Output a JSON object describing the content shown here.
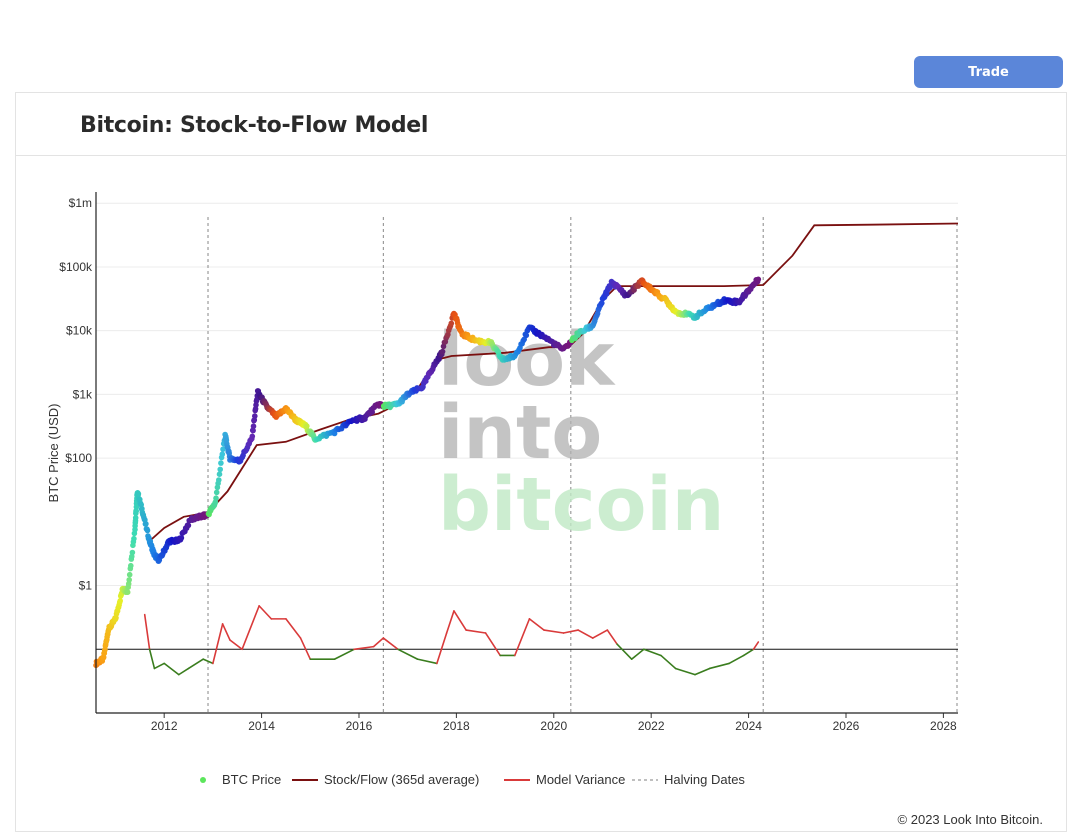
{
  "header": {
    "trade_label": "Trade"
  },
  "card": {
    "title": "Bitcoin: Stock-to-Flow Model"
  },
  "watermark": [
    "look",
    "into",
    "bitcoin"
  ],
  "footer": {
    "copyright": "© 2023 Look Into Bitcoin."
  },
  "colors": {
    "accent": "#5b86d9",
    "stock_flow": "#7a1010",
    "variance_high": "#d93a3a",
    "variance_low": "#3a7d1e",
    "halving": "#888888"
  },
  "chart_data": {
    "type": "line",
    "title": "",
    "ylabel": "BTC Price (USD)",
    "xlabel": "",
    "y_scale": "log",
    "xlim": [
      2010.6,
      2028.3
    ],
    "ylim": [
      0.01,
      1500000
    ],
    "x_ticks": [
      2012,
      2014,
      2016,
      2018,
      2020,
      2022,
      2024,
      2026,
      2028
    ],
    "x_tick_labels": [
      "2012",
      "2014",
      "2016",
      "2018",
      "2020",
      "2022",
      "2024",
      "2026",
      "2028"
    ],
    "y_ticks": [
      1,
      100,
      1000,
      10000,
      100000,
      1000000
    ],
    "y_tick_labels": [
      "$1",
      "$100",
      "$1k",
      "$10k",
      "$100k",
      "$1m"
    ],
    "halving_dates": [
      2012.9,
      2016.5,
      2020.35,
      2024.3,
      2028.3
    ],
    "grid": true,
    "legend_position": "bottom",
    "legend": [
      {
        "name": "BTC Price",
        "symbol": "dot",
        "color": "#5ce65c"
      },
      {
        "name": "Stock/Flow (365d average)",
        "symbol": "line",
        "color": "#7a1010"
      },
      {
        "name": "Model Variance",
        "symbol": "line",
        "color": "#d93a3a"
      },
      {
        "name": "Halving Dates",
        "symbol": "dash",
        "color": "#aaaaaa"
      }
    ],
    "series": [
      {
        "name": "BTC Price",
        "kind": "dots",
        "points": [
          [
            2010.6,
            0.06
          ],
          [
            2010.75,
            0.07
          ],
          [
            2010.85,
            0.2
          ],
          [
            2011.0,
            0.3
          ],
          [
            2011.15,
            0.9
          ],
          [
            2011.25,
            0.8
          ],
          [
            2011.4,
            8
          ],
          [
            2011.45,
            30
          ],
          [
            2011.55,
            15
          ],
          [
            2011.7,
            5
          ],
          [
            2011.8,
            3
          ],
          [
            2011.9,
            2.5
          ],
          [
            2012.1,
            5
          ],
          [
            2012.3,
            5
          ],
          [
            2012.55,
            11
          ],
          [
            2012.75,
            12
          ],
          [
            2012.9,
            13
          ],
          [
            2013.05,
            20
          ],
          [
            2013.25,
            230
          ],
          [
            2013.35,
            100
          ],
          [
            2013.55,
            90
          ],
          [
            2013.8,
            200
          ],
          [
            2013.92,
            1100
          ],
          [
            2014.1,
            650
          ],
          [
            2014.3,
            450
          ],
          [
            2014.5,
            600
          ],
          [
            2014.7,
            400
          ],
          [
            2014.9,
            320
          ],
          [
            2015.1,
            200
          ],
          [
            2015.5,
            260
          ],
          [
            2015.9,
            400
          ],
          [
            2016.1,
            420
          ],
          [
            2016.4,
            700
          ],
          [
            2016.55,
            650
          ],
          [
            2016.8,
            700
          ],
          [
            2017.0,
            1000
          ],
          [
            2017.3,
            1300
          ],
          [
            2017.5,
            2500
          ],
          [
            2017.7,
            4500
          ],
          [
            2017.95,
            19000
          ],
          [
            2018.1,
            9000
          ],
          [
            2018.4,
            7000
          ],
          [
            2018.7,
            6500
          ],
          [
            2018.95,
            3500
          ],
          [
            2019.2,
            4000
          ],
          [
            2019.5,
            11000
          ],
          [
            2019.8,
            8000
          ],
          [
            2020.2,
            5000
          ],
          [
            2020.5,
            9000
          ],
          [
            2020.8,
            12000
          ],
          [
            2021.0,
            30000
          ],
          [
            2021.2,
            58000
          ],
          [
            2021.5,
            35000
          ],
          [
            2021.8,
            60000
          ],
          [
            2022.0,
            45000
          ],
          [
            2022.3,
            30000
          ],
          [
            2022.5,
            20000
          ],
          [
            2022.9,
            16500
          ],
          [
            2023.2,
            23000
          ],
          [
            2023.5,
            30000
          ],
          [
            2023.8,
            28000
          ],
          [
            2024.0,
            43000
          ],
          [
            2024.2,
            64000
          ]
        ]
      },
      {
        "name": "Stock/Flow (365d average)",
        "kind": "line",
        "points": [
          [
            2011.7,
            5
          ],
          [
            2012.0,
            8
          ],
          [
            2012.4,
            12
          ],
          [
            2012.9,
            14
          ],
          [
            2013.3,
            30
          ],
          [
            2013.9,
            160
          ],
          [
            2014.5,
            180
          ],
          [
            2015.2,
            280
          ],
          [
            2015.8,
            400
          ],
          [
            2016.4,
            500
          ],
          [
            2016.7,
            650
          ],
          [
            2017.2,
            1200
          ],
          [
            2017.6,
            3500
          ],
          [
            2017.9,
            4000
          ],
          [
            2019.0,
            4500
          ],
          [
            2019.9,
            5500
          ],
          [
            2020.3,
            5500
          ],
          [
            2020.6,
            9000
          ],
          [
            2021.0,
            30000
          ],
          [
            2021.3,
            50000
          ],
          [
            2022.5,
            50000
          ],
          [
            2023.5,
            50000
          ],
          [
            2024.3,
            52000
          ],
          [
            2024.9,
            150000
          ],
          [
            2025.35,
            450000
          ],
          [
            2026.5,
            460000
          ],
          [
            2028.3,
            480000
          ]
        ]
      },
      {
        "name": "Model Variance",
        "kind": "variance",
        "baseline": 0.1,
        "points": [
          [
            2011.6,
            0.35
          ],
          [
            2011.7,
            0.1
          ],
          [
            2011.8,
            0.05
          ],
          [
            2012.0,
            0.06
          ],
          [
            2012.3,
            0.04
          ],
          [
            2012.5,
            0.05
          ],
          [
            2012.8,
            0.07
          ],
          [
            2013.0,
            0.06
          ],
          [
            2013.2,
            0.25
          ],
          [
            2013.35,
            0.14
          ],
          [
            2013.6,
            0.1
          ],
          [
            2013.95,
            0.48
          ],
          [
            2014.2,
            0.3
          ],
          [
            2014.5,
            0.3
          ],
          [
            2014.8,
            0.15
          ],
          [
            2015.0,
            0.07
          ],
          [
            2015.5,
            0.07
          ],
          [
            2015.9,
            0.1
          ],
          [
            2016.3,
            0.11
          ],
          [
            2016.5,
            0.15
          ],
          [
            2016.8,
            0.1
          ],
          [
            2017.2,
            0.07
          ],
          [
            2017.6,
            0.06
          ],
          [
            2017.8,
            0.18
          ],
          [
            2017.95,
            0.4
          ],
          [
            2018.2,
            0.2
          ],
          [
            2018.6,
            0.18
          ],
          [
            2018.9,
            0.08
          ],
          [
            2019.2,
            0.08
          ],
          [
            2019.5,
            0.3
          ],
          [
            2019.8,
            0.2
          ],
          [
            2020.2,
            0.18
          ],
          [
            2020.5,
            0.2
          ],
          [
            2020.8,
            0.15
          ],
          [
            2021.1,
            0.2
          ],
          [
            2021.3,
            0.12
          ],
          [
            2021.6,
            0.07
          ],
          [
            2021.85,
            0.1
          ],
          [
            2022.2,
            0.08
          ],
          [
            2022.5,
            0.05
          ],
          [
            2022.9,
            0.04
          ],
          [
            2023.2,
            0.05
          ],
          [
            2023.6,
            0.06
          ],
          [
            2023.9,
            0.08
          ],
          [
            2024.1,
            0.1
          ],
          [
            2024.2,
            0.13
          ]
        ]
      }
    ]
  }
}
